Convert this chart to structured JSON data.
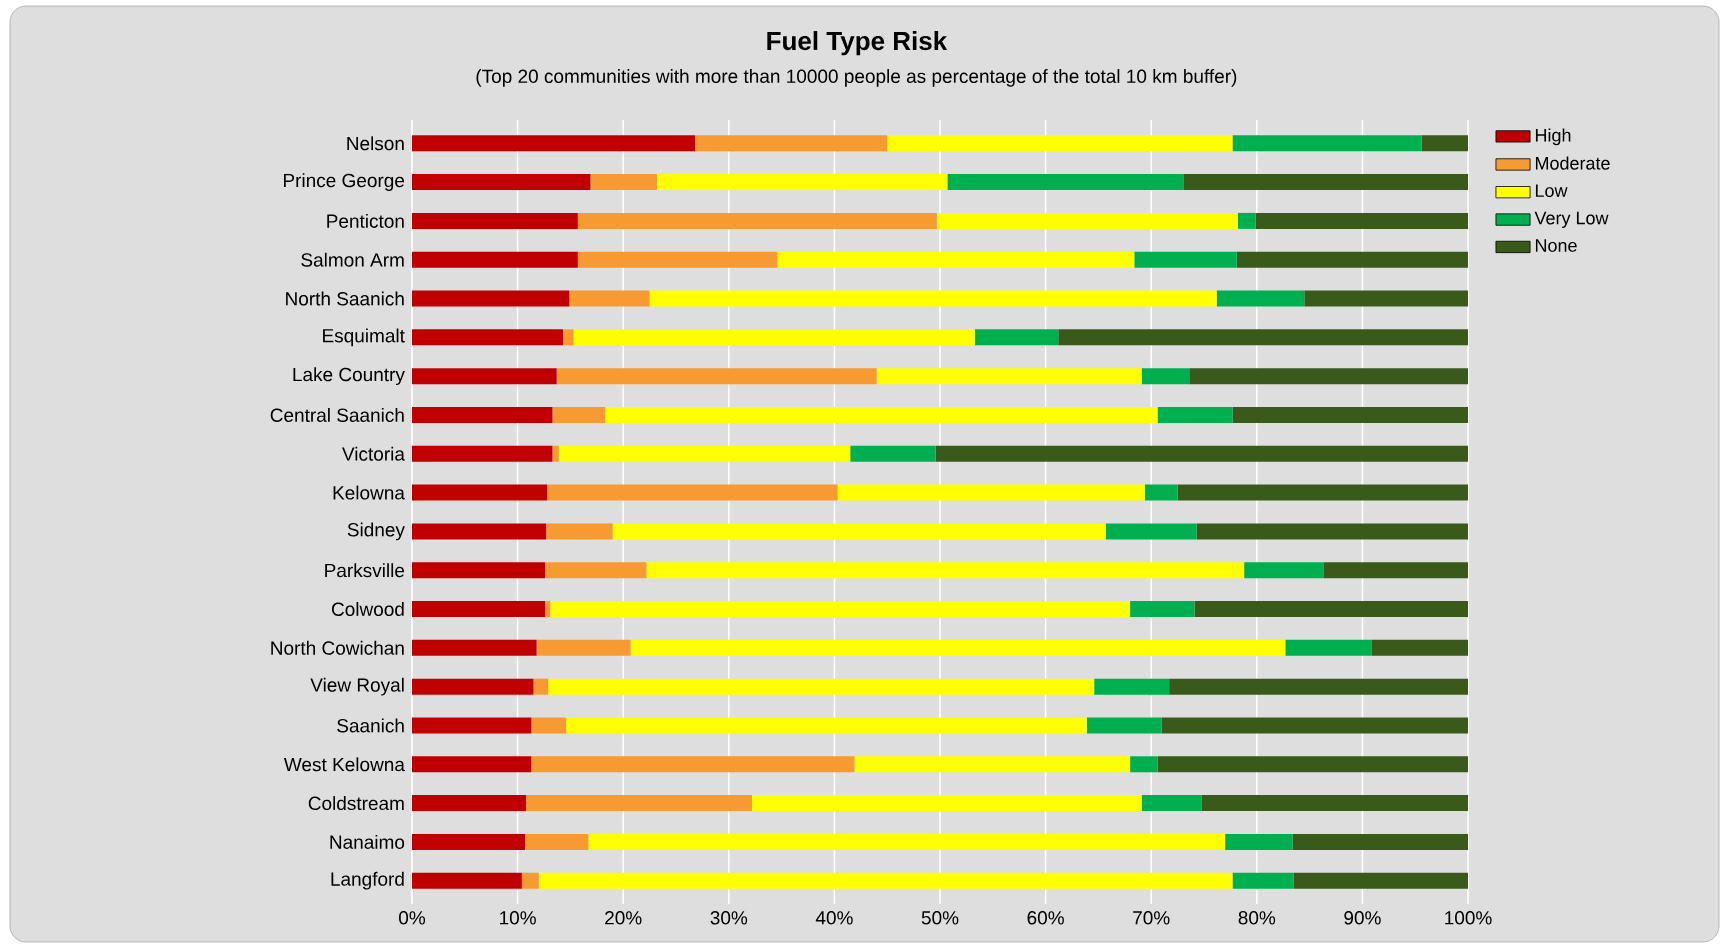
{
  "chart_data": {
    "type": "bar",
    "orientation": "horizontal",
    "stacked": true,
    "title": "Fuel Type Risk",
    "subtitle": "(Top 20 communities with more than 10000 people as percentage of the total 10 km buffer)",
    "categories": [
      "Nelson",
      "Prince George",
      "Penticton",
      "Salmon Arm",
      "North Saanich",
      "Esquimalt",
      "Lake Country",
      "Central Saanich",
      "Victoria",
      "Kelowna",
      "Sidney",
      "Parksville",
      "Colwood",
      "North Cowichan",
      "View Royal",
      "Saanich",
      "West Kelowna",
      "Coldstream",
      "Nanaimo",
      "Langford"
    ],
    "series": [
      {
        "name": "High",
        "color": "#c00000",
        "values": [
          26.8,
          16.9,
          15.7,
          15.7,
          14.9,
          14.3,
          13.7,
          13.3,
          13.3,
          12.8,
          12.7,
          12.6,
          12.6,
          11.8,
          11.5,
          11.3,
          11.3,
          10.8,
          10.7,
          10.4
        ]
      },
      {
        "name": "Moderate",
        "color": "#f79a32",
        "values": [
          18.2,
          6.3,
          34.0,
          18.9,
          7.6,
          1.0,
          30.3,
          5.0,
          0.6,
          27.5,
          6.3,
          9.6,
          0.5,
          8.9,
          1.4,
          3.3,
          30.6,
          21.4,
          6.0,
          1.6
        ]
      },
      {
        "name": "Low",
        "color": "#ffff00",
        "values": [
          32.7,
          27.5,
          28.5,
          33.8,
          53.7,
          38.0,
          25.1,
          52.3,
          27.6,
          29.1,
          46.7,
          56.6,
          54.9,
          62.0,
          51.7,
          49.3,
          26.1,
          36.9,
          60.3,
          65.7
        ]
      },
      {
        "name": "Very Low",
        "color": "#00b050",
        "values": [
          17.9,
          22.4,
          1.7,
          9.7,
          8.3,
          7.9,
          4.5,
          7.1,
          8.1,
          3.1,
          8.6,
          7.5,
          6.1,
          8.2,
          7.1,
          7.1,
          2.6,
          5.7,
          6.4,
          5.8
        ]
      },
      {
        "name": "None",
        "color": "#3a5a1c",
        "values": [
          4.4,
          26.9,
          20.1,
          21.9,
          15.5,
          38.8,
          26.4,
          22.3,
          50.4,
          27.5,
          25.7,
          13.7,
          25.9,
          9.1,
          28.3,
          29.0,
          29.4,
          25.2,
          16.6,
          16.5
        ]
      }
    ],
    "xlim": [
      0,
      100
    ],
    "xticks": [
      {
        "value": 0,
        "label": "0%"
      },
      {
        "value": 10,
        "label": "10%"
      },
      {
        "value": 20,
        "label": "20%"
      },
      {
        "value": 30,
        "label": "30%"
      },
      {
        "value": 40,
        "label": "40%"
      },
      {
        "value": 50,
        "label": "50%"
      },
      {
        "value": 60,
        "label": "60%"
      },
      {
        "value": 70,
        "label": "70%"
      },
      {
        "value": 80,
        "label": "80%"
      },
      {
        "value": 90,
        "label": "90%"
      },
      {
        "value": 100,
        "label": "100%"
      }
    ],
    "grid": "x",
    "legend": "top right"
  }
}
